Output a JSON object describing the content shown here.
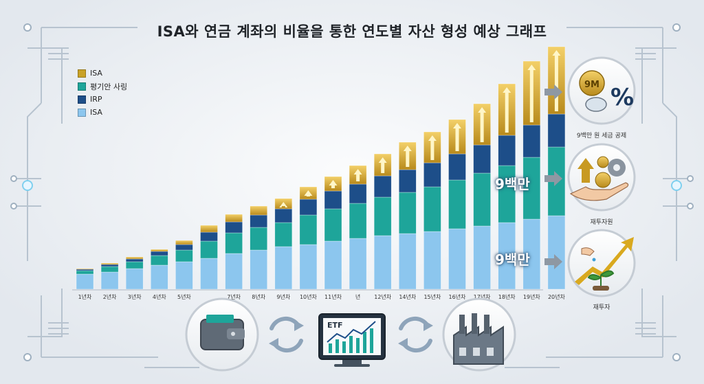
{
  "title": "ISA와 연금 계좌의 비율을 통한 연도별 자산 형성 예상 그래프",
  "legend": [
    {
      "label": "ISA",
      "color": "#c9a227"
    },
    {
      "label": "평기안 사링",
      "color": "#1ea59a"
    },
    {
      "label": "IRP",
      "color": "#1d4e89"
    },
    {
      "label": "ISA",
      "color": "#8cc6ee"
    }
  ],
  "overlay_labels": [
    "9백만",
    "9백만"
  ],
  "side_panel": {
    "items": [
      {
        "caption": "9백만 원 세금 공제",
        "badge": "9M",
        "symbol": "%"
      },
      {
        "caption": "재투자원"
      },
      {
        "caption": "재투자"
      }
    ]
  },
  "bottom_icons": {
    "etf_label": "ETF"
  },
  "chart_data": {
    "type": "bar",
    "stacked": true,
    "categories": [
      "1년차",
      "2년차",
      "3년차",
      "4년차",
      "5년차",
      "",
      "7년차",
      "8년차",
      "9년차",
      "10년차",
      "11년차",
      "년",
      "12년차",
      "14년차",
      "15년차",
      "16년차",
      "17년차",
      "18년차",
      "19년차",
      "20년차"
    ],
    "series": [
      {
        "name": "ISA",
        "color": "#8cc6ee",
        "values": [
          22,
          25,
          30,
          35,
          40,
          45,
          52,
          57,
          62,
          65,
          70,
          74,
          78,
          81,
          84,
          88,
          92,
          97,
          102,
          107
        ]
      },
      {
        "name": "평기안 사링",
        "color": "#1ea59a",
        "values": [
          5,
          8,
          10,
          14,
          17,
          25,
          30,
          33,
          35,
          43,
          47,
          51,
          56,
          60,
          65,
          71,
          77,
          83,
          90,
          100
        ]
      },
      {
        "name": "IRP",
        "color": "#1d4e89",
        "values": [
          2,
          3,
          4,
          6,
          8,
          13,
          16,
          18,
          20,
          23,
          26,
          28,
          31,
          33,
          35,
          38,
          41,
          44,
          47,
          48
        ]
      },
      {
        "name": "ISA",
        "color": "#c9a227",
        "values": [
          1,
          2,
          3,
          3,
          6,
          10,
          11,
          13,
          15,
          18,
          21,
          27,
          32,
          40,
          45,
          50,
          60,
          75,
          93,
          98
        ]
      }
    ],
    "ylim": [
      0,
      340
    ],
    "xlabel": "",
    "ylabel": ""
  }
}
